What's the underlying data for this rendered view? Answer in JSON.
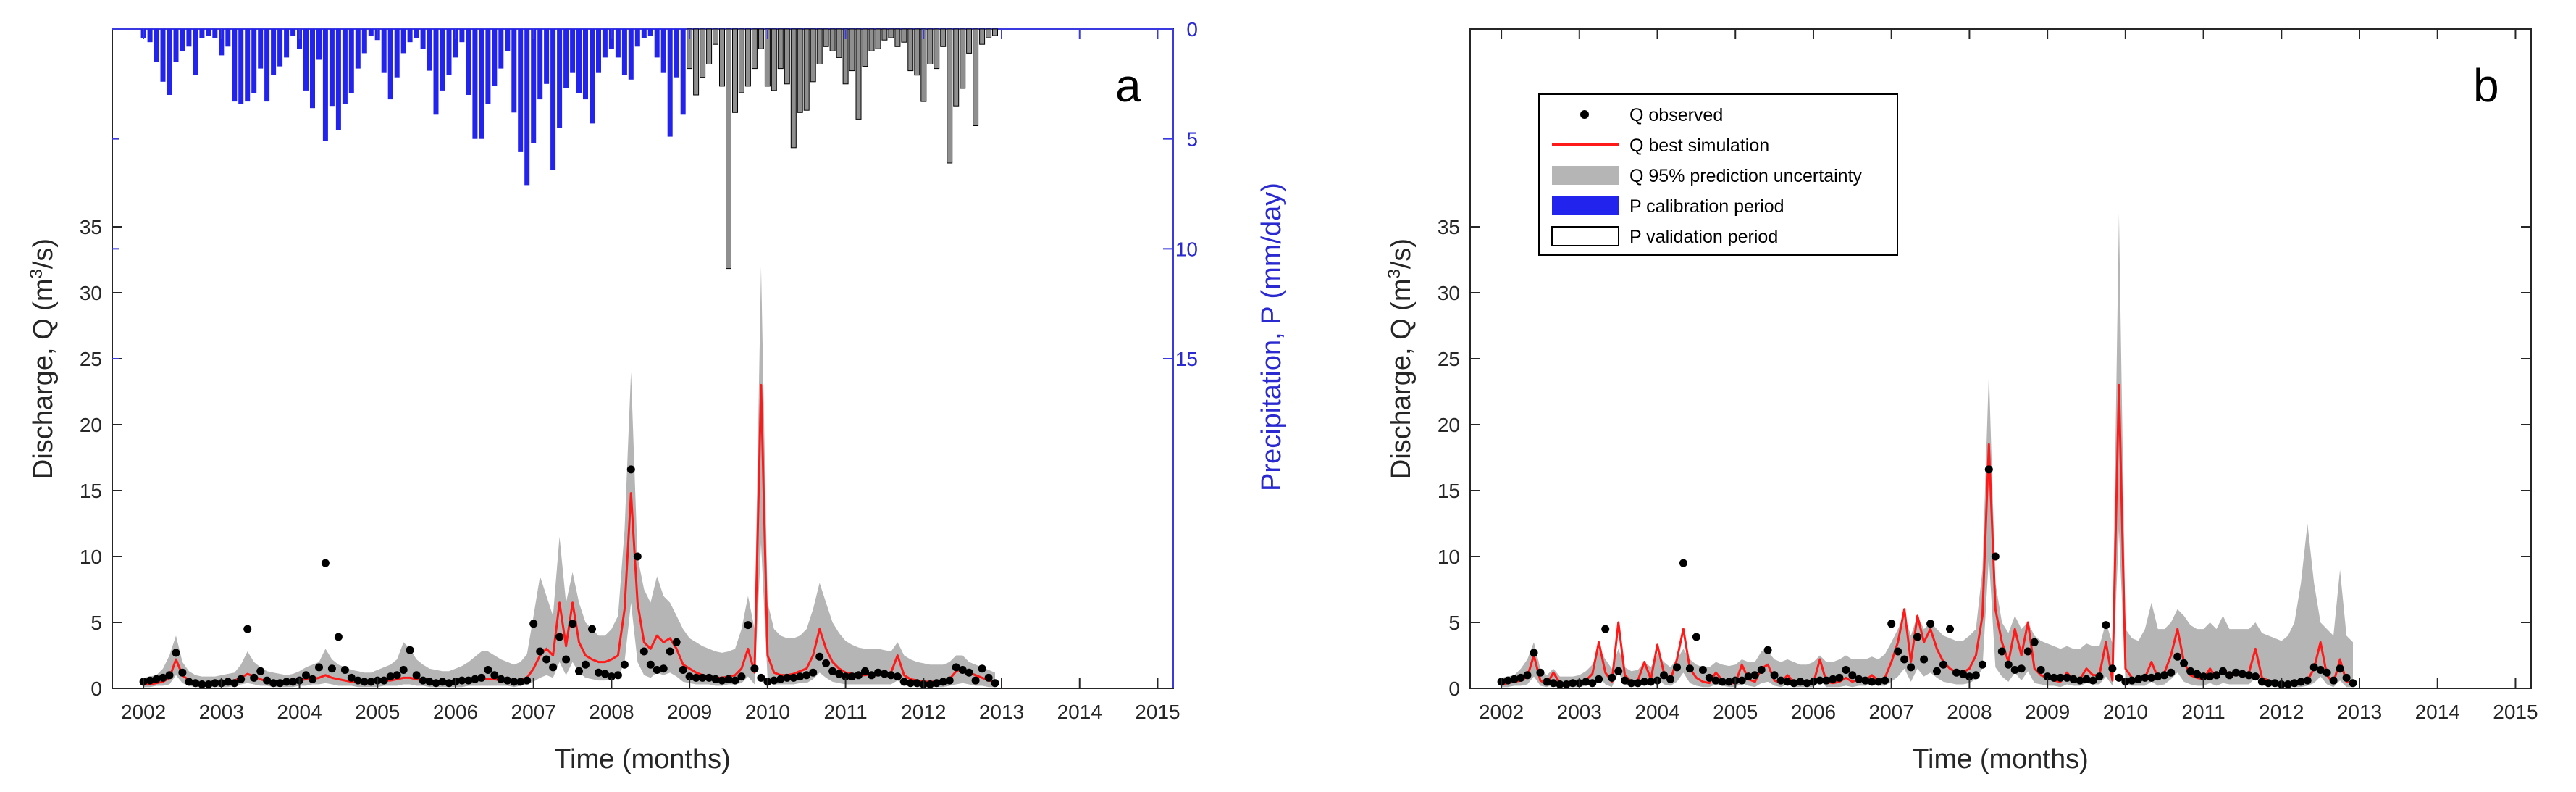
{
  "colors": {
    "observed": "#000000",
    "simulation": "#ff1a1a",
    "uncertainty": "#b5b5b5",
    "p_calibration": "#2323ee",
    "p_validation": "#8f8f8f",
    "precip_axis": "#3a3ae0",
    "axis": "#262626"
  },
  "legend": {
    "observed": "Q observed",
    "simulation": "Q best simulation",
    "uncertainty": "Q 95% prediction uncertainty",
    "p_calibration": "P calibration period",
    "p_validation": "P validation period"
  },
  "chart_data": [
    {
      "panel": "a",
      "type": "line",
      "xlabel": "Time (months)",
      "ylabel_main": "Discharge, Q (m",
      "ylabel_sup": "3",
      "ylabel_tail": "/s)",
      "y2label": "Precipitation, P (mm/day)",
      "xlim": [
        2001.6,
        2015.2
      ],
      "ylim": [
        0,
        50
      ],
      "y2_ticks": [
        0,
        5,
        10,
        15
      ],
      "xticks": [
        "2002",
        "2003",
        "2004",
        "2005",
        "2006",
        "2007",
        "2008",
        "2009",
        "2010",
        "2011",
        "2012",
        "2013",
        "2014",
        "2015"
      ],
      "yticks": [
        "0",
        "5",
        "10",
        "15",
        "20",
        "25",
        "30",
        "35"
      ],
      "validation_start": 2009.0,
      "precip_start": 2002.0,
      "precip_step_months": 1,
      "precipitation": [
        0.4,
        0.6,
        1.5,
        2.4,
        3.0,
        1.5,
        1.0,
        0.8,
        2.1,
        0.4,
        0.3,
        0.4,
        1.2,
        0.8,
        3.3,
        3.4,
        3.3,
        2.9,
        1.8,
        3.3,
        2.1,
        1.7,
        1.3,
        0.3,
        0.9,
        2.8,
        3.6,
        1.4,
        5.1,
        3.5,
        4.6,
        3.4,
        2.9,
        1.8,
        1.1,
        0.3,
        0.5,
        2.0,
        3.2,
        2.2,
        1.1,
        0.6,
        0.4,
        0.9,
        1.9,
        3.9,
        2.8,
        2.1,
        1.3,
        0.6,
        3.0,
        5.0,
        5.0,
        3.4,
        2.6,
        1.8,
        1.0,
        3.8,
        5.6,
        7.1,
        5.2,
        3.2,
        2.5,
        6.4,
        4.5,
        2.7,
        2.0,
        2.9,
        3.2,
        4.3,
        2.0,
        1.3,
        0.9,
        1.3,
        2.1,
        2.3,
        0.8,
        0.4,
        0.3,
        1.3,
        2.0,
        4.9,
        2.2,
        3.9,
        1.8,
        3.0,
        2.2,
        1.6,
        0.7,
        2.6,
        10.9,
        3.8,
        2.9,
        2.6,
        1.8,
        0.9,
        2.6,
        2.8,
        1.8,
        2.5,
        5.4,
        3.8,
        3.7,
        2.4,
        1.6,
        0.8,
        1.0,
        1.3,
        2.5,
        1.9,
        4.1,
        1.7,
        1.0,
        0.9,
        0.5,
        0.4,
        0.8,
        0.6,
        1.9,
        2.1,
        3.3,
        1.6,
        1.8,
        0.8,
        6.1,
        3.5,
        2.7,
        1.1,
        4.4,
        0.7,
        0.4,
        0.3
      ],
      "q_start": 2002.0,
      "q_step_months": 1,
      "q_observed": [
        0.5,
        0.6,
        0.7,
        0.8,
        1.0,
        2.7,
        1.2,
        0.5,
        0.4,
        0.3,
        0.3,
        0.4,
        0.4,
        0.5,
        0.4,
        0.7,
        4.5,
        0.8,
        1.3,
        0.6,
        0.4,
        0.4,
        0.5,
        0.5,
        0.6,
        1.0,
        0.7,
        1.6,
        9.5,
        1.5,
        3.9,
        1.4,
        0.8,
        0.6,
        0.5,
        0.5,
        0.6,
        0.6,
        0.9,
        1.0,
        1.4,
        2.9,
        1.0,
        0.6,
        0.5,
        0.4,
        0.5,
        0.4,
        0.5,
        0.6,
        0.6,
        0.7,
        0.8,
        1.4,
        1.0,
        0.7,
        0.6,
        0.5,
        0.5,
        0.6,
        4.9,
        2.8,
        2.2,
        1.6,
        3.9,
        2.2,
        4.9,
        1.3,
        1.8,
        4.5,
        1.2,
        1.1,
        0.9,
        1.0,
        1.8,
        16.6,
        10.0,
        2.8,
        1.8,
        1.4,
        1.5,
        2.8,
        3.5,
        1.4,
        0.9,
        0.8,
        0.8,
        0.8,
        0.7,
        0.6,
        0.7,
        0.6,
        0.9,
        4.8,
        1.5,
        0.8,
        0.5,
        0.6,
        0.7,
        0.8,
        0.8,
        0.9,
        1.0,
        1.2,
        2.4,
        1.9,
        1.3,
        1.1,
        0.9,
        0.9,
        1.0,
        1.3,
        1.0,
        1.2,
        1.1,
        1.0,
        0.9,
        0.5,
        0.4,
        0.4,
        0.3,
        0.3,
        0.4,
        0.5,
        0.6,
        1.6,
        1.4,
        1.2,
        0.6,
        1.5,
        0.8,
        0.4
      ],
      "q_simulated": [
        0.3,
        0.3,
        0.4,
        0.5,
        0.8,
        2.2,
        1.0,
        0.6,
        0.5,
        0.4,
        0.4,
        0.4,
        0.5,
        0.5,
        0.6,
        0.8,
        1.1,
        0.9,
        0.7,
        0.5,
        0.5,
        0.5,
        0.5,
        0.5,
        0.6,
        0.7,
        0.7,
        0.8,
        1.0,
        0.8,
        0.7,
        0.6,
        0.5,
        0.5,
        0.5,
        0.5,
        0.5,
        0.6,
        0.6,
        0.7,
        0.8,
        0.8,
        0.7,
        0.6,
        0.5,
        0.5,
        0.5,
        0.5,
        0.5,
        0.5,
        0.6,
        0.6,
        0.7,
        0.7,
        0.7,
        0.6,
        0.6,
        0.5,
        0.6,
        0.8,
        1.5,
        2.5,
        3.0,
        2.5,
        6.5,
        3.2,
        6.5,
        3.5,
        2.5,
        2.2,
        2.0,
        2.0,
        2.2,
        2.5,
        6.0,
        14.8,
        6.5,
        3.5,
        3.0,
        4.0,
        3.5,
        3.8,
        3.0,
        1.8,
        1.5,
        1.2,
        1.0,
        0.9,
        0.8,
        0.8,
        0.9,
        1.0,
        1.5,
        3.0,
        1.2,
        23.0,
        2.5,
        1.2,
        1.0,
        1.0,
        1.1,
        1.3,
        1.5,
        2.5,
        4.5,
        3.0,
        2.0,
        1.5,
        1.2,
        1.1,
        1.0,
        1.0,
        1.1,
        1.0,
        1.1,
        1.2,
        2.5,
        1.0,
        0.7,
        0.6,
        0.5,
        0.5,
        0.5,
        0.6,
        0.7,
        1.3,
        1.5,
        1.2,
        1.0,
        0.8,
        0.6,
        0.5
      ],
      "q_upper": [
        0.8,
        0.9,
        1.0,
        1.5,
        2.5,
        4.0,
        2.0,
        1.3,
        1.0,
        0.9,
        0.9,
        0.9,
        1.0,
        1.1,
        1.2,
        1.8,
        2.8,
        2.0,
        1.6,
        1.3,
        1.2,
        1.1,
        1.0,
        1.1,
        1.3,
        1.6,
        1.8,
        2.0,
        3.0,
        2.2,
        1.8,
        1.6,
        1.4,
        1.3,
        1.2,
        1.2,
        1.4,
        1.6,
        1.8,
        2.2,
        3.5,
        3.0,
        2.2,
        1.8,
        1.5,
        1.4,
        1.3,
        1.3,
        1.5,
        1.7,
        2.0,
        2.4,
        2.8,
        2.8,
        2.5,
        2.2,
        2.0,
        1.8,
        2.0,
        2.6,
        5.5,
        8.5,
        7.0,
        5.5,
        11.5,
        6.5,
        8.8,
        6.5,
        5.0,
        4.5,
        4.0,
        4.0,
        4.5,
        5.5,
        12.0,
        24.0,
        10.0,
        7.5,
        6.5,
        8.5,
        7.0,
        6.5,
        5.5,
        4.5,
        3.8,
        3.5,
        3.2,
        3.0,
        2.8,
        2.7,
        2.8,
        3.0,
        4.5,
        7.0,
        4.5,
        32.0,
        6.5,
        4.5,
        4.0,
        3.8,
        3.8,
        4.0,
        4.5,
        6.0,
        8.0,
        6.5,
        5.0,
        4.2,
        3.6,
        3.3,
        3.1,
        3.0,
        3.0,
        3.0,
        2.9,
        2.8,
        3.5,
        2.5,
        2.2,
        2.0,
        1.9,
        1.8,
        1.8,
        1.8,
        2.0,
        2.5,
        2.5,
        2.0,
        1.8,
        1.6,
        1.4,
        1.2
      ],
      "q_lower": [
        0.1,
        0.1,
        0.2,
        0.2,
        0.3,
        1.0,
        0.4,
        0.2,
        0.1,
        0.1,
        0.1,
        0.1,
        0.1,
        0.1,
        0.2,
        0.3,
        0.4,
        0.3,
        0.2,
        0.2,
        0.1,
        0.1,
        0.1,
        0.1,
        0.2,
        0.2,
        0.3,
        0.3,
        0.4,
        0.3,
        0.2,
        0.2,
        0.2,
        0.1,
        0.1,
        0.1,
        0.1,
        0.2,
        0.2,
        0.2,
        0.3,
        0.3,
        0.2,
        0.2,
        0.1,
        0.1,
        0.1,
        0.1,
        0.1,
        0.1,
        0.2,
        0.2,
        0.2,
        0.2,
        0.2,
        0.2,
        0.2,
        0.1,
        0.2,
        0.3,
        0.5,
        0.8,
        1.0,
        0.8,
        2.0,
        1.0,
        2.0,
        1.2,
        0.8,
        0.7,
        0.6,
        0.6,
        0.7,
        0.8,
        2.0,
        6.5,
        2.0,
        1.0,
        0.8,
        1.2,
        1.0,
        1.2,
        0.9,
        0.5,
        0.4,
        0.3,
        0.3,
        0.3,
        0.2,
        0.2,
        0.3,
        0.3,
        0.4,
        0.9,
        0.3,
        11.0,
        0.7,
        0.3,
        0.3,
        0.3,
        0.3,
        0.4,
        0.4,
        0.7,
        1.2,
        0.8,
        0.5,
        0.4,
        0.3,
        0.3,
        0.3,
        0.3,
        0.3,
        0.3,
        0.3,
        0.3,
        0.6,
        0.2,
        0.2,
        0.1,
        0.1,
        0.1,
        0.1,
        0.1,
        0.2,
        0.3,
        0.4,
        0.3,
        0.2,
        0.2,
        0.1,
        0.1
      ]
    },
    {
      "panel": "b",
      "type": "line",
      "xlabel": "Time (months)",
      "ylabel_main": "Discharge, Q (m",
      "ylabel_sup": "3",
      "ylabel_tail": "/s)",
      "xlim": [
        2001.6,
        2015.2
      ],
      "ylim": [
        0,
        50
      ],
      "xticks": [
        "2002",
        "2003",
        "2004",
        "2005",
        "2006",
        "2007",
        "2008",
        "2009",
        "2010",
        "2011",
        "2012",
        "2013",
        "2014",
        "2015"
      ],
      "yticks": [
        "0",
        "5",
        "10",
        "15",
        "20",
        "25",
        "30",
        "35"
      ],
      "q_start": 2002.0,
      "q_step_months": 1,
      "q_observed": [
        0.5,
        0.6,
        0.7,
        0.8,
        1.0,
        2.7,
        1.2,
        0.5,
        0.4,
        0.3,
        0.3,
        0.4,
        0.4,
        0.5,
        0.4,
        0.7,
        4.5,
        0.8,
        1.3,
        0.6,
        0.4,
        0.4,
        0.5,
        0.5,
        0.6,
        1.0,
        0.7,
        1.6,
        9.5,
        1.5,
        3.9,
        1.4,
        0.8,
        0.6,
        0.5,
        0.5,
        0.6,
        0.6,
        0.9,
        1.0,
        1.4,
        2.9,
        1.0,
        0.6,
        0.5,
        0.4,
        0.5,
        0.4,
        0.5,
        0.6,
        0.6,
        0.7,
        0.8,
        1.4,
        1.0,
        0.7,
        0.6,
        0.5,
        0.5,
        0.6,
        4.9,
        2.8,
        2.2,
        1.6,
        3.9,
        2.2,
        4.9,
        1.3,
        1.8,
        4.5,
        1.2,
        1.1,
        0.9,
        1.0,
        1.8,
        16.6,
        10.0,
        2.8,
        1.8,
        1.4,
        1.5,
        2.8,
        3.5,
        1.4,
        0.9,
        0.8,
        0.8,
        0.8,
        0.7,
        0.6,
        0.7,
        0.6,
        0.9,
        4.8,
        1.5,
        0.8,
        0.5,
        0.6,
        0.7,
        0.8,
        0.8,
        0.9,
        1.0,
        1.2,
        2.4,
        1.9,
        1.3,
        1.1,
        0.9,
        0.9,
        1.0,
        1.3,
        1.0,
        1.2,
        1.1,
        1.0,
        0.9,
        0.5,
        0.4,
        0.4,
        0.3,
        0.3,
        0.4,
        0.5,
        0.6,
        1.6,
        1.4,
        1.2,
        0.6,
        1.5,
        0.8,
        0.4
      ],
      "q_simulated": [
        0.3,
        0.4,
        0.5,
        0.6,
        0.9,
        2.5,
        0.6,
        0.3,
        1.2,
        0.4,
        0.3,
        0.3,
        0.3,
        0.6,
        1.1,
        3.5,
        1.2,
        0.5,
        5.0,
        1.0,
        0.5,
        0.6,
        2.0,
        0.7,
        3.3,
        1.2,
        0.6,
        2.2,
        4.5,
        1.5,
        0.8,
        0.5,
        0.4,
        1.2,
        0.6,
        0.4,
        0.4,
        1.8,
        0.7,
        0.5,
        1.5,
        1.8,
        0.6,
        0.4,
        1.0,
        0.5,
        0.4,
        0.3,
        0.4,
        2.2,
        0.5,
        0.4,
        0.5,
        0.8,
        0.5,
        0.7,
        0.6,
        1.0,
        0.6,
        0.8,
        2.0,
        3.5,
        6.0,
        2.0,
        5.5,
        3.5,
        4.5,
        3.0,
        2.0,
        1.5,
        1.2,
        1.2,
        1.5,
        2.5,
        5.5,
        18.5,
        6.0,
        3.5,
        2.0,
        4.5,
        2.5,
        5.0,
        1.5,
        1.0,
        0.8,
        0.6,
        0.5,
        1.2,
        0.6,
        0.7,
        1.5,
        1.0,
        1.0,
        3.5,
        0.6,
        23.0,
        1.5,
        0.8,
        0.6,
        0.8,
        2.0,
        0.8,
        1.2,
        2.5,
        4.5,
        2.0,
        1.0,
        0.8,
        0.7,
        1.5,
        0.8,
        1.5,
        1.0,
        1.0,
        1.1,
        1.2,
        3.0,
        0.8,
        0.6,
        0.4,
        0.3,
        0.3,
        0.4,
        0.5,
        0.6,
        1.5,
        3.5,
        1.0,
        0.4,
        2.2,
        0.5,
        0.4
      ],
      "q_upper": [
        0.8,
        0.9,
        1.0,
        1.5,
        2.2,
        3.5,
        1.5,
        1.0,
        1.5,
        0.9,
        0.9,
        0.9,
        1.0,
        1.3,
        1.8,
        3.0,
        2.2,
        1.5,
        3.0,
        1.6,
        1.3,
        1.4,
        2.0,
        1.6,
        2.6,
        2.0,
        1.6,
        2.2,
        3.0,
        2.2,
        1.8,
        1.6,
        1.6,
        2.0,
        1.8,
        1.7,
        1.8,
        2.2,
        2.0,
        2.0,
        2.8,
        2.8,
        2.2,
        2.0,
        2.2,
        2.0,
        1.8,
        1.8,
        2.0,
        2.5,
        2.0,
        2.0,
        2.2,
        2.5,
        2.2,
        2.2,
        2.2,
        2.4,
        2.2,
        2.6,
        3.5,
        4.5,
        5.5,
        4.0,
        5.5,
        4.5,
        5.0,
        4.5,
        4.0,
        3.8,
        3.6,
        3.6,
        4.0,
        4.5,
        9.0,
        24.0,
        8.0,
        5.0,
        4.2,
        5.5,
        4.5,
        5.0,
        4.0,
        3.6,
        3.4,
        3.2,
        3.0,
        3.2,
        3.0,
        3.0,
        3.4,
        3.2,
        3.2,
        5.0,
        3.4,
        36.0,
        4.5,
        3.8,
        3.6,
        4.5,
        6.5,
        4.5,
        4.5,
        5.0,
        6.0,
        5.5,
        4.8,
        4.5,
        4.5,
        5.0,
        4.5,
        5.5,
        4.5,
        4.5,
        4.5,
        4.5,
        5.0,
        4.2,
        4.0,
        3.8,
        3.6,
        4.0,
        5.0,
        8.0,
        12.5,
        8.0,
        5.0,
        4.5,
        4.0,
        9.0,
        4.0,
        3.5
      ],
      "q_lower": [
        0.1,
        0.1,
        0.2,
        0.2,
        0.3,
        0.9,
        0.2,
        0.1,
        0.3,
        0.1,
        0.1,
        0.1,
        0.1,
        0.2,
        0.3,
        0.9,
        0.3,
        0.1,
        1.2,
        0.3,
        0.1,
        0.2,
        0.5,
        0.2,
        0.8,
        0.3,
        0.2,
        0.5,
        1.2,
        0.4,
        0.2,
        0.1,
        0.1,
        0.3,
        0.2,
        0.1,
        0.1,
        0.4,
        0.2,
        0.1,
        0.4,
        0.5,
        0.2,
        0.1,
        0.3,
        0.1,
        0.1,
        0.1,
        0.1,
        0.6,
        0.1,
        0.1,
        0.1,
        0.2,
        0.1,
        0.2,
        0.2,
        0.3,
        0.2,
        0.2,
        0.5,
        0.9,
        1.5,
        0.5,
        1.5,
        0.9,
        1.2,
        0.8,
        0.5,
        0.4,
        0.3,
        0.3,
        0.4,
        0.7,
        1.5,
        10.0,
        1.6,
        0.9,
        0.5,
        1.2,
        0.6,
        1.3,
        0.4,
        0.3,
        0.2,
        0.2,
        0.1,
        0.3,
        0.2,
        0.2,
        0.4,
        0.3,
        0.3,
        0.9,
        0.2,
        12.0,
        0.4,
        0.2,
        0.2,
        0.2,
        0.5,
        0.2,
        0.3,
        0.7,
        1.2,
        0.5,
        0.3,
        0.2,
        0.2,
        0.4,
        0.2,
        0.4,
        0.3,
        0.3,
        0.3,
        0.3,
        0.8,
        0.2,
        0.2,
        0.1,
        0.1,
        0.1,
        0.1,
        0.1,
        0.2,
        0.4,
        0.9,
        0.3,
        0.1,
        0.6,
        0.1,
        0.1
      ]
    }
  ]
}
